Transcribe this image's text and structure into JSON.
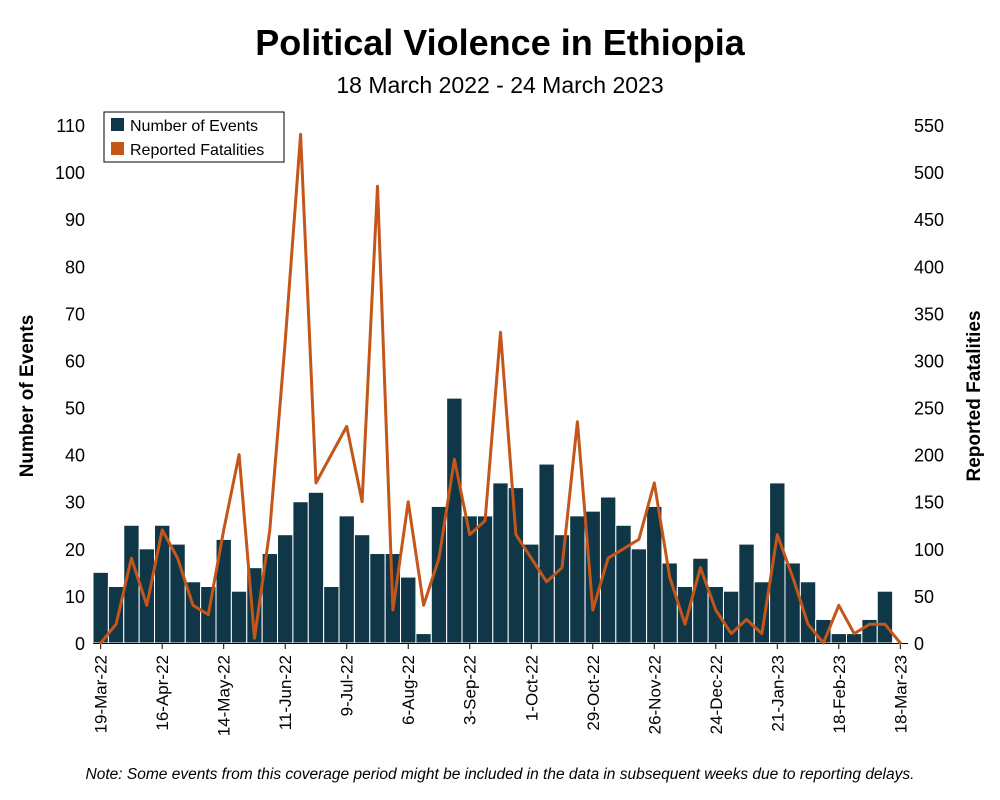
{
  "header": {
    "title": "Political Violence in Ethiopia",
    "subtitle": "18 March 2022 - 24 March 2023"
  },
  "footer": {
    "note": "Note: Some events from this coverage period might be included in the data in subsequent weeks due to reporting delays."
  },
  "colors": {
    "events": "#0f3747",
    "fatalities": "#c4561a"
  },
  "chart_data": {
    "type": "bar",
    "y_left_label": "Number of Events",
    "y_right_label": "Reported Fatalities",
    "y_left_ticks": [
      0,
      10,
      20,
      30,
      40,
      50,
      60,
      70,
      80,
      90,
      100,
      110
    ],
    "y_right_ticks": [
      0,
      50,
      100,
      150,
      200,
      250,
      300,
      350,
      400,
      450,
      500,
      550
    ],
    "y_left_lim": [
      0,
      110
    ],
    "y_right_lim": [
      0,
      550
    ],
    "x_tick_labels": [
      {
        "index": 0,
        "label": "19-Mar-22"
      },
      {
        "index": 4,
        "label": "16-Apr-22"
      },
      {
        "index": 8,
        "label": "14-May-22"
      },
      {
        "index": 12,
        "label": "11-Jun-22"
      },
      {
        "index": 16,
        "label": "9-Jul-22"
      },
      {
        "index": 20,
        "label": "6-Aug-22"
      },
      {
        "index": 24,
        "label": "3-Sep-22"
      },
      {
        "index": 28,
        "label": "1-Oct-22"
      },
      {
        "index": 32,
        "label": "29-Oct-22"
      },
      {
        "index": 36,
        "label": "26-Nov-22"
      },
      {
        "index": 40,
        "label": "24-Dec-22"
      },
      {
        "index": 44,
        "label": "21-Jan-23"
      },
      {
        "index": 48,
        "label": "18-Feb-23"
      },
      {
        "index": 52,
        "label": "18-Mar-23"
      }
    ],
    "legend": {
      "placement": "top-left",
      "entries": [
        "Number of Events",
        "Reported Fatalities"
      ]
    },
    "series": [
      {
        "name": "Number of Events",
        "type": "bar",
        "axis": "left",
        "values": [
          15,
          12,
          25,
          20,
          25,
          21,
          13,
          12,
          22,
          11,
          16,
          19,
          23,
          30,
          32,
          12,
          27,
          23,
          19,
          19,
          14,
          2,
          29,
          52,
          27,
          27,
          34,
          33,
          21,
          38,
          23,
          27,
          28,
          31,
          25,
          20,
          29,
          17,
          12,
          18,
          12,
          11,
          21,
          13,
          34,
          17,
          13,
          5,
          2,
          2,
          5,
          11,
          0
        ]
      },
      {
        "name": "Reported Fatalities",
        "type": "line",
        "axis": "right",
        "values": [
          0,
          20,
          90,
          40,
          120,
          90,
          40,
          30,
          120,
          200,
          5,
          120,
          320,
          540,
          170,
          200,
          230,
          150,
          485,
          35,
          150,
          40,
          90,
          195,
          115,
          130,
          330,
          115,
          90,
          65,
          80,
          235,
          35,
          90,
          100,
          110,
          170,
          70,
          20,
          80,
          35,
          10,
          25,
          10,
          115,
          70,
          20,
          0,
          40,
          10,
          20,
          20,
          0
        ]
      }
    ]
  }
}
